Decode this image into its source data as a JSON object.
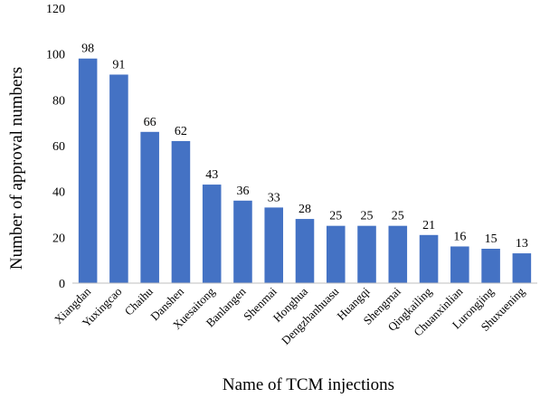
{
  "chart_data": {
    "type": "bar",
    "xlabel": "Name of TCM injections",
    "ylabel": "Number of approval numbers",
    "ylim": [
      0,
      120
    ],
    "yticks": [
      0,
      20,
      40,
      60,
      80,
      100,
      120
    ],
    "grid": false,
    "bar_color": "#4472C4",
    "categories": [
      "Xiangdan",
      "Yuxingcao",
      "Chaihu",
      "Danshen",
      "Xuesaitong",
      "Banlangen",
      "Shenmai",
      "Honghua",
      "Dengzhanhuasu",
      "Huangqi",
      "Shengmai",
      "Qingkailing",
      "Chuanxinlian",
      "Lurongjing",
      "Shuxuening"
    ],
    "values": [
      98,
      91,
      66,
      62,
      43,
      36,
      33,
      28,
      25,
      25,
      25,
      21,
      16,
      15,
      13
    ]
  }
}
